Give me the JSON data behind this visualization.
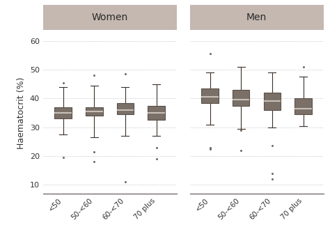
{
  "women": {
    "labels": [
      "<50",
      "50-<60",
      "60-<70",
      "70 plus"
    ],
    "boxes": [
      {
        "q1": 33.0,
        "median": 35.0,
        "q3": 37.0,
        "whisker_low": 27.5,
        "whisker_high": 44.0,
        "fliers": [
          19.5,
          45.5
        ]
      },
      {
        "q1": 34.0,
        "median": 35.5,
        "q3": 37.0,
        "whisker_low": 26.5,
        "whisker_high": 44.5,
        "fliers": [
          18.0,
          21.5,
          48.0
        ]
      },
      {
        "q1": 34.5,
        "median": 36.0,
        "q3": 38.5,
        "whisker_low": 27.0,
        "whisker_high": 44.0,
        "fliers": [
          11.0,
          48.5
        ]
      },
      {
        "q1": 32.5,
        "median": 35.0,
        "q3": 37.5,
        "whisker_low": 27.0,
        "whisker_high": 45.0,
        "fliers": [
          19.0,
          23.0
        ]
      }
    ]
  },
  "men": {
    "labels": [
      "<50",
      "50-<60",
      "60-<70",
      "70 plus"
    ],
    "boxes": [
      {
        "q1": 38.5,
        "median": 40.5,
        "q3": 43.5,
        "whisker_low": 31.0,
        "whisker_high": 49.0,
        "fliers": [
          22.5,
          23.0,
          55.5
        ]
      },
      {
        "q1": 37.5,
        "median": 39.5,
        "q3": 43.0,
        "whisker_low": 29.5,
        "whisker_high": 51.0,
        "fliers": [
          22.0,
          29.0
        ]
      },
      {
        "q1": 36.0,
        "median": 39.0,
        "q3": 42.0,
        "whisker_low": 30.0,
        "whisker_high": 49.0,
        "fliers": [
          12.0,
          14.0,
          23.5
        ]
      },
      {
        "q1": 34.5,
        "median": 36.5,
        "q3": 40.0,
        "whisker_low": 30.5,
        "whisker_high": 47.5,
        "fliers": [
          51.0
        ]
      }
    ]
  },
  "ylim": [
    7,
    63
  ],
  "yticks": [
    10,
    20,
    30,
    40,
    50,
    60
  ],
  "ylabel": "Haematocrit (%)",
  "box_facecolor": "#7A7068",
  "box_edgecolor": "#5A5048",
  "median_color": "#C8C0B8",
  "whisker_color": "#3A3028",
  "flier_color": "#5A5048",
  "panel_title_bg": "#C4B8B0",
  "plot_bg": "#FFFFFF",
  "figure_bg": "#FFFFFF",
  "grid_color": "#BBBBBB",
  "tick_label_color": "#333333",
  "box_width": 0.55,
  "cap_ratio": 0.45
}
